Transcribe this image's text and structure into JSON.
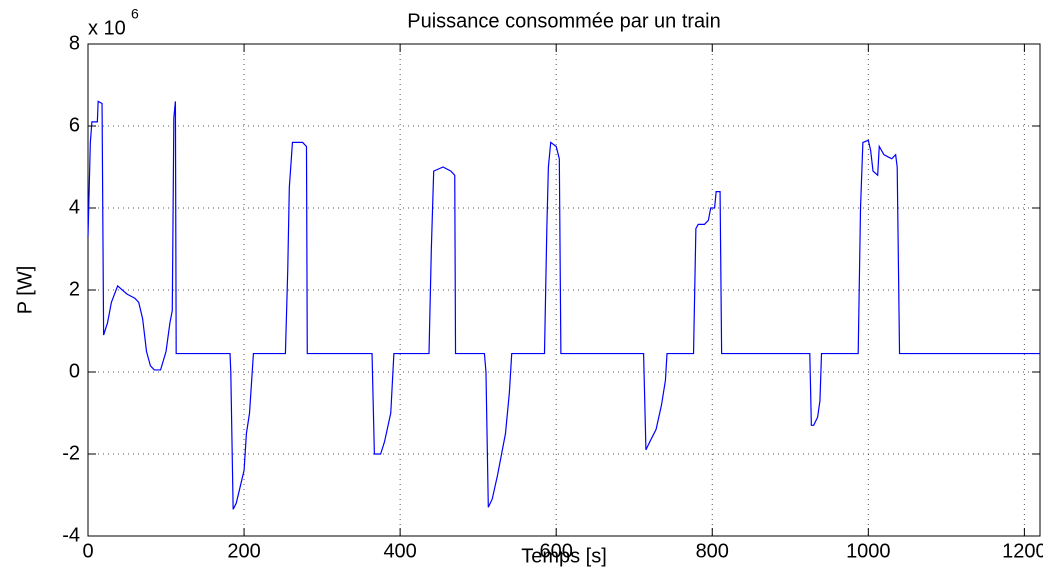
{
  "chart_data": {
    "type": "line",
    "title": "Puissance consommée par un train",
    "xlabel": "Temps [s]",
    "ylabel": "P [W]",
    "y_multiplier": {
      "base": "x 10",
      "exponent": "6"
    },
    "color": "#0000ff",
    "grid": true,
    "xlim": [
      0,
      1220
    ],
    "xticks": [
      0,
      200,
      400,
      600,
      800,
      1000,
      1200
    ],
    "ylim": [
      -4,
      8
    ],
    "yticks": [
      -4,
      -2,
      0,
      2,
      4,
      6,
      8
    ],
    "x": [
      0,
      3,
      5,
      12,
      13,
      18,
      20,
      25,
      30,
      38,
      50,
      60,
      65,
      70,
      75,
      80,
      85,
      93,
      100,
      105,
      108,
      110,
      112,
      113,
      182,
      183,
      186,
      190,
      195,
      200,
      203,
      207,
      212,
      253,
      256,
      258,
      262,
      275,
      280,
      281,
      364,
      367,
      375,
      380,
      388,
      392,
      437,
      440,
      443,
      455,
      465,
      470,
      471,
      508,
      510,
      513,
      518,
      525,
      530,
      535,
      540,
      543,
      585,
      588,
      590,
      593,
      600,
      604,
      606,
      712,
      715,
      720,
      728,
      735,
      740,
      742,
      776,
      779,
      782,
      790,
      795,
      798,
      803,
      805,
      810,
      812,
      925,
      927,
      930,
      935,
      938,
      940,
      987,
      990,
      993,
      1000,
      1003,
      1006,
      1012,
      1014,
      1020,
      1030,
      1035,
      1037,
      1040,
      1220
    ],
    "values": [
      3.3,
      5.6,
      6.1,
      6.1,
      6.6,
      6.55,
      0.9,
      1.2,
      1.7,
      2.1,
      1.9,
      1.8,
      1.7,
      1.3,
      0.5,
      0.15,
      0.05,
      0.05,
      0.5,
      1.2,
      1.5,
      6.2,
      6.6,
      0.45,
      0.45,
      0,
      -3.35,
      -3.2,
      -2.8,
      -2.4,
      -1.5,
      -1,
      0.45,
      0.45,
      2.5,
      4.5,
      5.6,
      5.6,
      5.5,
      0.45,
      0.45,
      -2.0,
      -2.0,
      -1.7,
      -1.0,
      0.45,
      0.45,
      3,
      4.9,
      5.0,
      4.9,
      4.8,
      0.45,
      0.45,
      0,
      -3.3,
      -3.1,
      -2.5,
      -2,
      -1.5,
      -0.5,
      0.45,
      0.45,
      3.5,
      5,
      5.6,
      5.5,
      5.2,
      0.45,
      0.45,
      -1.9,
      -1.7,
      -1.4,
      -0.8,
      -0.2,
      0.45,
      0.45,
      3.5,
      3.6,
      3.6,
      3.7,
      4.0,
      4.0,
      4.4,
      4.4,
      0.45,
      0.45,
      -1.3,
      -1.3,
      -1.1,
      -0.7,
      0.45,
      0.45,
      4,
      5.6,
      5.65,
      5.4,
      4.9,
      4.8,
      5.5,
      5.3,
      5.2,
      5.3,
      5.0,
      0.45,
      0.45
    ]
  }
}
